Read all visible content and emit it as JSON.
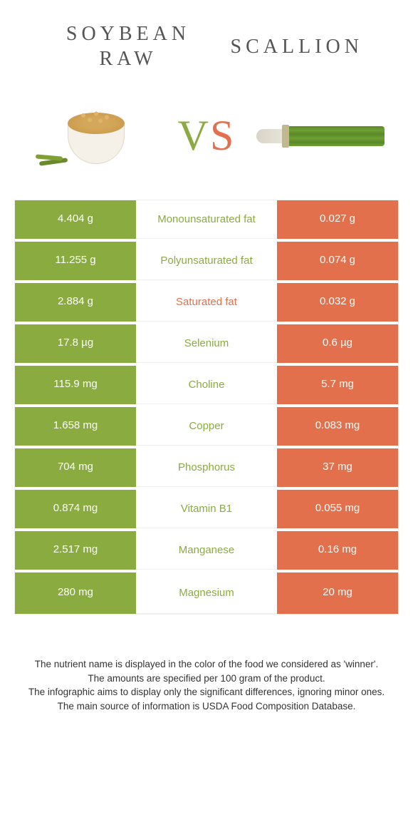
{
  "header": {
    "left_title": "SOYBEAN\nRAW",
    "right_title": "SCALLION",
    "vs_v": "V",
    "vs_s": "S"
  },
  "colors": {
    "left": "#8aab3f",
    "right": "#e2704c",
    "background": "#ffffff",
    "text": "#333333"
  },
  "table": {
    "rows": [
      {
        "left": "4.404 g",
        "label": "Monounsaturated fat",
        "right": "0.027 g",
        "winner": "left"
      },
      {
        "left": "11.255 g",
        "label": "Polyunsaturated fat",
        "right": "0.074 g",
        "winner": "left"
      },
      {
        "left": "2.884 g",
        "label": "Saturated fat",
        "right": "0.032 g",
        "winner": "right"
      },
      {
        "left": "17.8 µg",
        "label": "Selenium",
        "right": "0.6 µg",
        "winner": "left"
      },
      {
        "left": "115.9 mg",
        "label": "Choline",
        "right": "5.7 mg",
        "winner": "left"
      },
      {
        "left": "1.658 mg",
        "label": "Copper",
        "right": "0.083 mg",
        "winner": "left"
      },
      {
        "left": "704 mg",
        "label": "Phosphorus",
        "right": "37 mg",
        "winner": "left"
      },
      {
        "left": "0.874 mg",
        "label": "Vitamin B1",
        "right": "0.055 mg",
        "winner": "left"
      },
      {
        "left": "2.517 mg",
        "label": "Manganese",
        "right": "0.16 mg",
        "winner": "left"
      },
      {
        "left": "280 mg",
        "label": "Magnesium",
        "right": "20 mg",
        "winner": "left"
      }
    ]
  },
  "footer": {
    "line1": "The nutrient name is displayed in the color of the food we considered as 'winner'.",
    "line2": "The amounts are specified per 100 gram of the product.",
    "line3": "The infographic aims to display only the significant differences, ignoring minor ones.",
    "line4": "The main source of information is USDA Food Composition Database."
  }
}
